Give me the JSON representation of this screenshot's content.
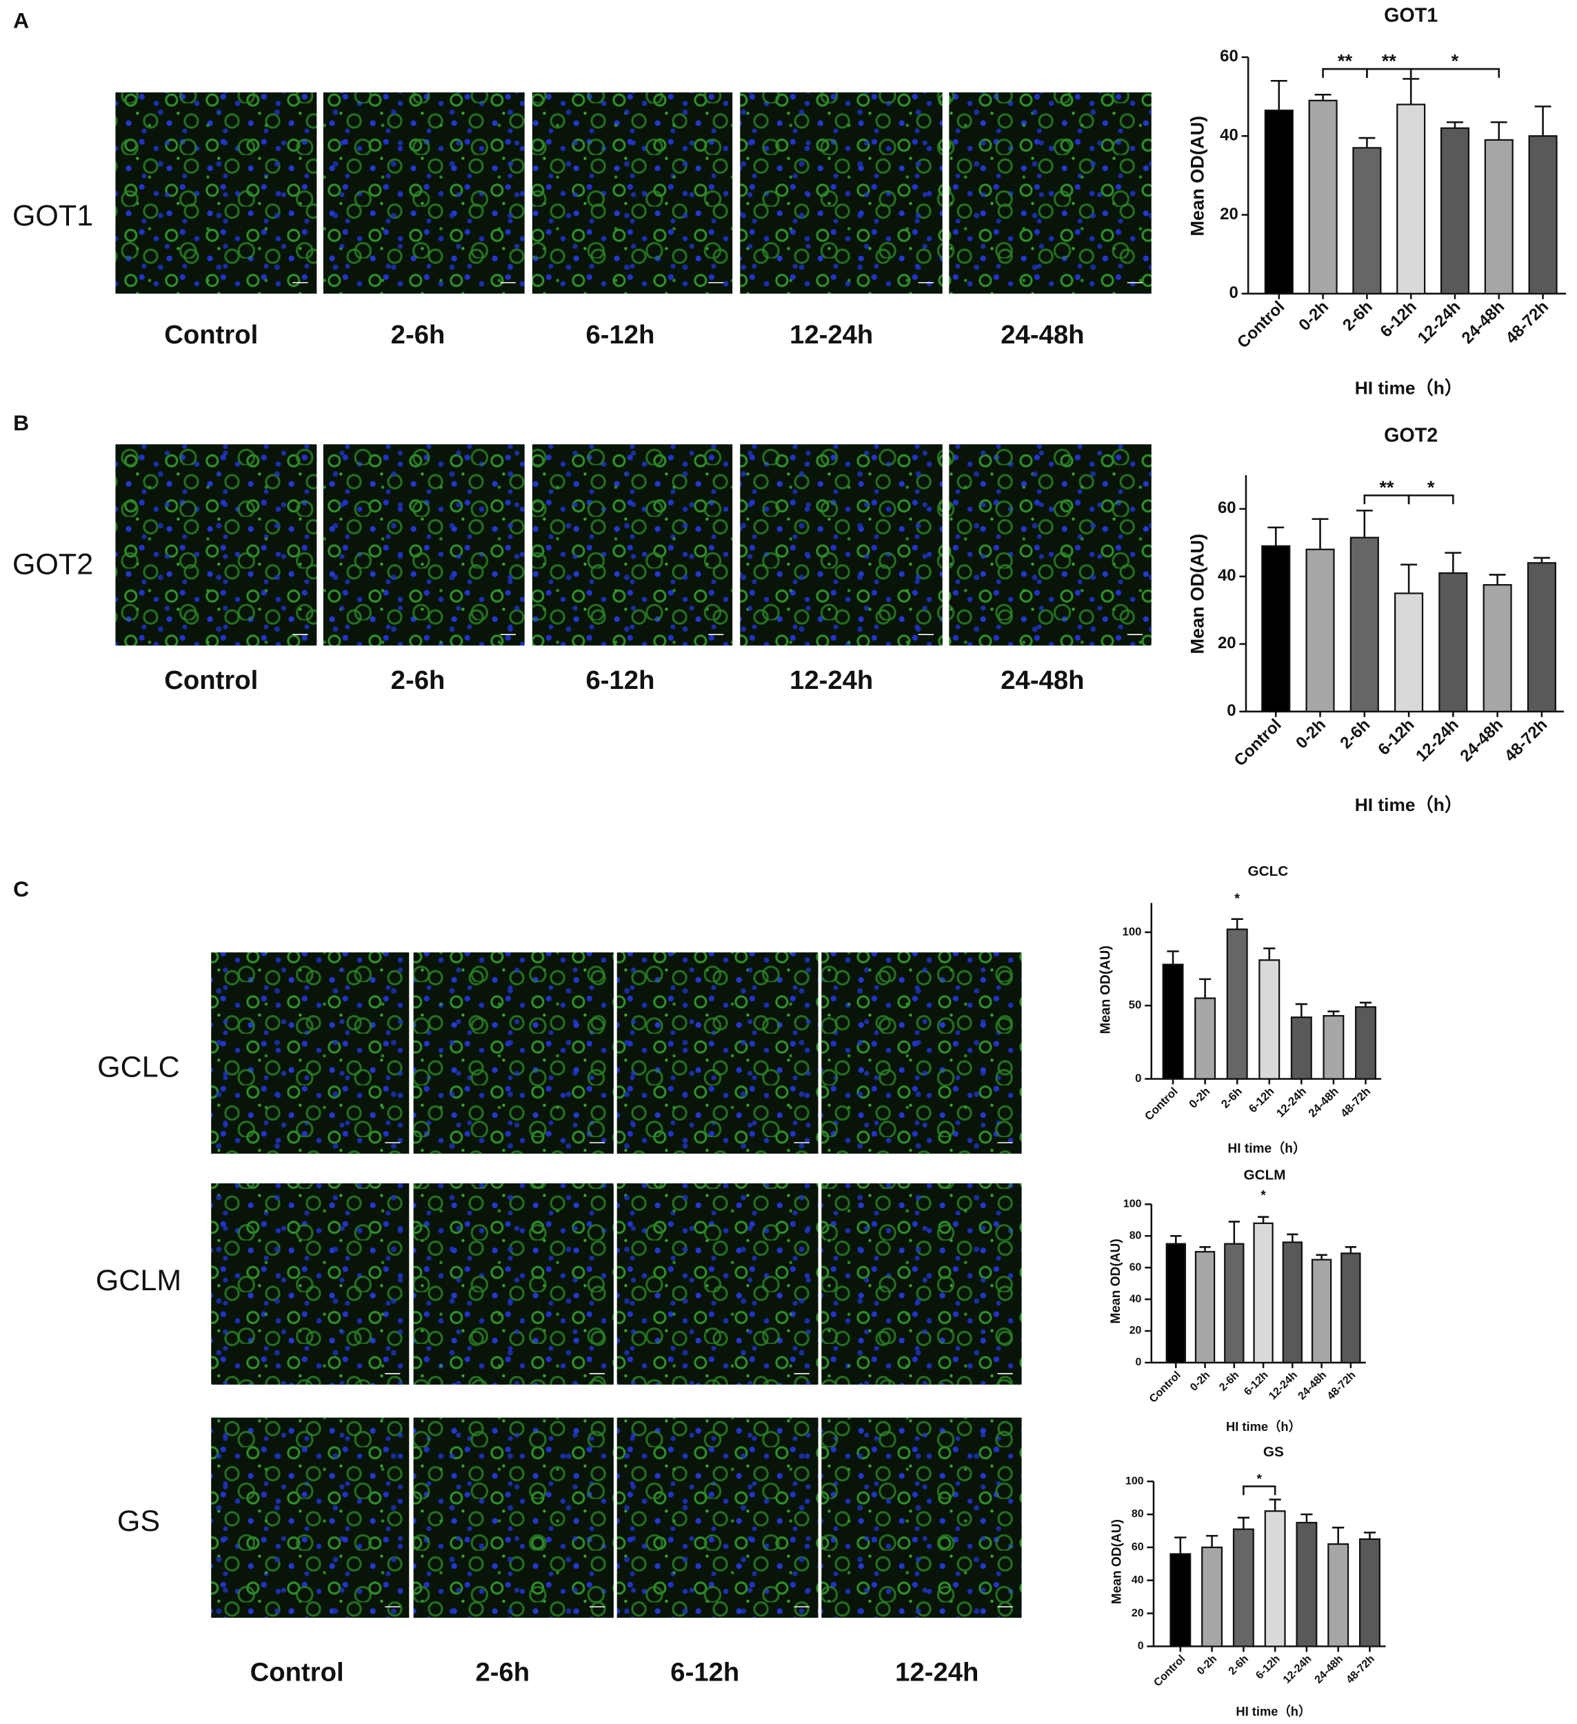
{
  "figure": {
    "panel_labels": [
      "A",
      "B",
      "C"
    ],
    "row_labels_a": [
      "GOT1"
    ],
    "row_labels_b": [
      "GOT2"
    ],
    "row_labels_c": [
      "GCLC",
      "GCLM",
      "GS"
    ],
    "column_labels_ab": [
      "Control",
      "2-6h",
      "6-12h",
      "12-24h",
      "24-48h"
    ],
    "column_labels_c": [
      "Control",
      "2-6h",
      "6-12h",
      "12-24h"
    ]
  },
  "chart_data": [
    {
      "type": "bar",
      "title": "GOT1",
      "y_label": "Mean OD(AU)",
      "x_label": "HI time（h）",
      "categories": [
        "Control",
        "0-2h",
        "2-6h",
        "6-12h",
        "12-24h",
        "24-48h",
        "48-72h"
      ],
      "values": [
        46.5,
        49,
        37,
        48,
        42,
        39,
        40
      ],
      "errors": [
        7.5,
        1.5,
        2.5,
        6.5,
        1.5,
        4.5,
        7.5
      ],
      "colors": [
        "#000000",
        "#a6a6a6",
        "#666666",
        "#d9d9d9",
        "#595959",
        "#a6a6a6",
        "#595959"
      ],
      "ylim": [
        0,
        60
      ],
      "yticks": [
        0,
        20,
        40,
        60
      ],
      "annotations": [
        {
          "label": "**"
        },
        {
          "label": "**"
        },
        {
          "label": "*"
        }
      ]
    },
    {
      "type": "bar",
      "title": "GOT2",
      "y_label": "Mean OD(AU)",
      "x_label": "HI time（h）",
      "categories": [
        "Control",
        "0-2h",
        "2-6h",
        "6-12h",
        "12-24h",
        "24-48h",
        "48-72h"
      ],
      "values": [
        49,
        48,
        51.5,
        35,
        41,
        37.5,
        44
      ],
      "errors": [
        5.5,
        9,
        8,
        8.5,
        6,
        3,
        1.5
      ],
      "colors": [
        "#000000",
        "#a6a6a6",
        "#666666",
        "#d9d9d9",
        "#595959",
        "#a6a6a6",
        "#595959"
      ],
      "ylim": [
        0,
        70
      ],
      "yticks": [
        0,
        20,
        40,
        60
      ],
      "annotations": [
        {
          "label": "**"
        },
        {
          "label": "*"
        }
      ]
    },
    {
      "type": "bar",
      "title": "GCLC",
      "y_label": "Mean OD(AU)",
      "x_label": "HI time（h）",
      "categories": [
        "Control",
        "0-2h",
        "2-6h",
        "6-12h",
        "12-24h",
        "24-48h",
        "48-72h"
      ],
      "values": [
        78,
        55,
        102,
        81,
        42,
        43,
        49
      ],
      "errors": [
        9,
        13,
        7,
        8,
        9,
        3,
        3
      ],
      "colors": [
        "#000000",
        "#a6a6a6",
        "#666666",
        "#d9d9d9",
        "#595959",
        "#a6a6a6",
        "#595959"
      ],
      "ylim": [
        0,
        120
      ],
      "yticks": [
        0,
        50,
        100
      ],
      "annotations": [
        {
          "label": "*"
        }
      ]
    },
    {
      "type": "bar",
      "title": "GCLM",
      "y_label": "Mean OD(AU)",
      "x_label": "HI time（h）",
      "categories": [
        "Control",
        "0-2h",
        "2-6h",
        "6-12h",
        "12-24h",
        "24-48h",
        "48-72h"
      ],
      "values": [
        75,
        70,
        75,
        88,
        76,
        65,
        69
      ],
      "errors": [
        5,
        3,
        14,
        4,
        5,
        3,
        4
      ],
      "colors": [
        "#000000",
        "#a6a6a6",
        "#666666",
        "#d9d9d9",
        "#595959",
        "#a6a6a6",
        "#595959"
      ],
      "ylim": [
        0,
        100
      ],
      "yticks": [
        0,
        20,
        40,
        60,
        80,
        100
      ],
      "annotations": [
        {
          "label": "*"
        }
      ]
    },
    {
      "type": "bar",
      "title": "GS",
      "y_label": "Mean OD(AU)",
      "x_label": "HI time（h）",
      "categories": [
        "Control",
        "0-2h",
        "2-6h",
        "6-12h",
        "12-24h",
        "24-48h",
        "48-72h"
      ],
      "values": [
        56,
        60,
        71,
        82,
        75,
        62,
        65
      ],
      "errors": [
        10,
        7,
        7,
        7,
        5,
        10,
        4
      ],
      "colors": [
        "#000000",
        "#a6a6a6",
        "#666666",
        "#d9d9d9",
        "#595959",
        "#a6a6a6",
        "#595959"
      ],
      "ylim": [
        0,
        100
      ],
      "yticks": [
        0,
        20,
        40,
        60,
        80,
        100
      ],
      "annotations": [
        {
          "label": "*"
        }
      ]
    }
  ]
}
